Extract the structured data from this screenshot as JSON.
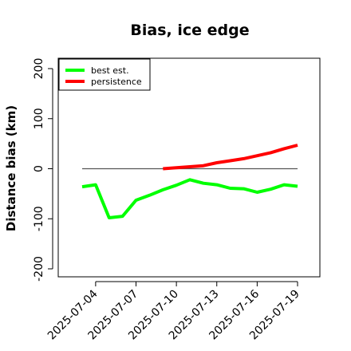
{
  "chart_data": {
    "type": "line",
    "title": "Bias, ice edge",
    "xlabel": "",
    "ylabel": "Distance bias (km)",
    "ylim": [
      -200,
      200
    ],
    "y_ticks": [
      -200,
      -100,
      0,
      100,
      200
    ],
    "x_start": "2025-07-03",
    "x_end": "2025-07-19",
    "x_tick_labels": [
      "2025-07-04",
      "2025-07-07",
      "2025-07-10",
      "2025-07-13",
      "2025-07-16",
      "2025-07-19"
    ],
    "grid": false,
    "legend_position": "top-left",
    "reference_line_y": 0,
    "series": [
      {
        "name": "best est.",
        "color": "#00ff00",
        "dates": [
          "2025-07-03",
          "2025-07-04",
          "2025-07-05",
          "2025-07-06",
          "2025-07-07",
          "2025-07-08",
          "2025-07-09",
          "2025-07-10",
          "2025-07-11",
          "2025-07-12",
          "2025-07-13",
          "2025-07-14",
          "2025-07-15",
          "2025-07-16",
          "2025-07-17",
          "2025-07-18",
          "2025-07-19"
        ],
        "values": [
          -36,
          -32,
          -98,
          -95,
          -63,
          -53,
          -42,
          -33,
          -22,
          -29,
          -32,
          -39,
          -40,
          -47,
          -41,
          -32,
          -35
        ]
      },
      {
        "name": "persistence",
        "color": "#ff0000",
        "dates": [
          "2025-07-09",
          "2025-07-10",
          "2025-07-11",
          "2025-07-12",
          "2025-07-13",
          "2025-07-14",
          "2025-07-15",
          "2025-07-16",
          "2025-07-17",
          "2025-07-18",
          "2025-07-19"
        ],
        "values": [
          0,
          2,
          4,
          6,
          12,
          16,
          20,
          26,
          32,
          40,
          47
        ]
      }
    ]
  }
}
